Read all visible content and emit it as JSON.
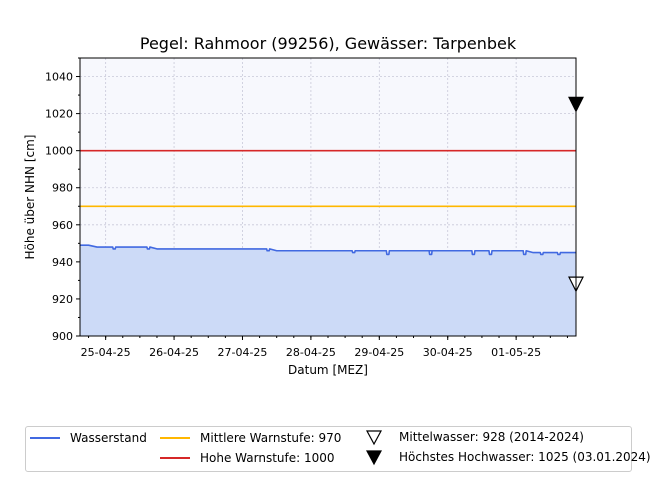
{
  "chart_data": {
    "type": "line",
    "title": "Pegel:  Rahmoor (99256), Gewässer:  Tarpenbek",
    "xlabel": "Datum [MEZ]",
    "ylabel": "Höhe über NHN [cm]",
    "ylim": [
      900,
      1050
    ],
    "yticks": [
      900,
      920,
      940,
      960,
      980,
      1000,
      1020,
      1040
    ],
    "xrange": [
      "2025-04-24T15:00",
      "2025-05-01T21:00"
    ],
    "xticks": [
      {
        "t": "2025-04-25T00:00",
        "label": "25-04-25"
      },
      {
        "t": "2025-04-26T00:00",
        "label": "26-04-25"
      },
      {
        "t": "2025-04-27T00:00",
        "label": "27-04-25"
      },
      {
        "t": "2025-04-28T00:00",
        "label": "28-04-25"
      },
      {
        "t": "2025-04-29T00:00",
        "label": "29-04-25"
      },
      {
        "t": "2025-04-30T00:00",
        "label": "30-04-25"
      },
      {
        "t": "2025-05-01T00:00",
        "label": "01-05-25"
      }
    ],
    "grid": true,
    "series": [
      {
        "name": "Wasserstand",
        "color": "#4169e1",
        "fill": "#ccdaf7",
        "points": [
          [
            "2025-04-24T15:00",
            949
          ],
          [
            "2025-04-24T18:00",
            949
          ],
          [
            "2025-04-24T21:00",
            948
          ],
          [
            "2025-04-25T00:00",
            948
          ],
          [
            "2025-04-25T06:00",
            948
          ],
          [
            "2025-04-25T12:00",
            948
          ],
          [
            "2025-04-25T18:00",
            947
          ],
          [
            "2025-04-26T00:00",
            947
          ],
          [
            "2025-04-26T06:00",
            947
          ],
          [
            "2025-04-26T12:00",
            947
          ],
          [
            "2025-04-26T18:00",
            947
          ],
          [
            "2025-04-27T00:00",
            947
          ],
          [
            "2025-04-27T06:00",
            947
          ],
          [
            "2025-04-27T12:00",
            946
          ],
          [
            "2025-04-27T18:00",
            946
          ],
          [
            "2025-04-28T00:00",
            946
          ],
          [
            "2025-04-28T06:00",
            946
          ],
          [
            "2025-04-28T12:00",
            946
          ],
          [
            "2025-04-28T18:00",
            946
          ],
          [
            "2025-04-29T00:00",
            946
          ],
          [
            "2025-04-29T06:00",
            946
          ],
          [
            "2025-04-29T12:00",
            946
          ],
          [
            "2025-04-29T18:00",
            946
          ],
          [
            "2025-04-30T00:00",
            946
          ],
          [
            "2025-04-30T06:00",
            946
          ],
          [
            "2025-04-30T12:00",
            946
          ],
          [
            "2025-04-30T18:00",
            946
          ],
          [
            "2025-05-01T00:00",
            946
          ],
          [
            "2025-05-01T06:00",
            945
          ],
          [
            "2025-05-01T12:00",
            945
          ],
          [
            "2025-05-01T18:00",
            945
          ],
          [
            "2025-05-01T21:00",
            945
          ]
        ],
        "dips": [
          [
            "2025-04-25T03:00",
            947
          ],
          [
            "2025-04-25T15:00",
            947
          ],
          [
            "2025-04-27T09:00",
            946
          ],
          [
            "2025-04-27T18:00",
            946
          ],
          [
            "2025-04-28T15:00",
            945
          ],
          [
            "2025-04-29T03:00",
            944
          ],
          [
            "2025-04-29T18:00",
            944
          ],
          [
            "2025-04-30T09:00",
            944
          ],
          [
            "2025-04-30T15:00",
            944
          ],
          [
            "2025-05-01T03:00",
            944
          ],
          [
            "2025-05-01T09:00",
            944
          ],
          [
            "2025-05-01T15:00",
            944
          ]
        ]
      }
    ],
    "thresholds": [
      {
        "name": "Mittlere Warnstufe",
        "value": 970,
        "color": "#ffb700"
      },
      {
        "name": "Hohe Warnstufe",
        "value": 1000,
        "color": "#d62728"
      }
    ],
    "markers": [
      {
        "name": "Mittelwasser",
        "value": 928,
        "note": "2014-2024",
        "symbol": "triangle-down-open"
      },
      {
        "name": "Höchstes Hochwasser",
        "value": 1025,
        "note": "03.01.2024",
        "symbol": "triangle-down-filled"
      }
    ],
    "legend": {
      "placement": "bottom",
      "items": [
        "Wasserstand",
        "Mittlere Warnstufe: 970",
        "Mittelwasser: 928 (2014-2024)",
        "Hohe Warnstufe: 1000",
        "Höchstes Hochwasser: 1025 (03.01.2024)"
      ]
    },
    "colors": {
      "plot_bg": "#f7f8fd",
      "grid": "#c8c8d8",
      "level": "#4169e1",
      "level_fill": "#ccdaf7",
      "warn_mid": "#ffb700",
      "warn_high": "#d62728"
    }
  }
}
